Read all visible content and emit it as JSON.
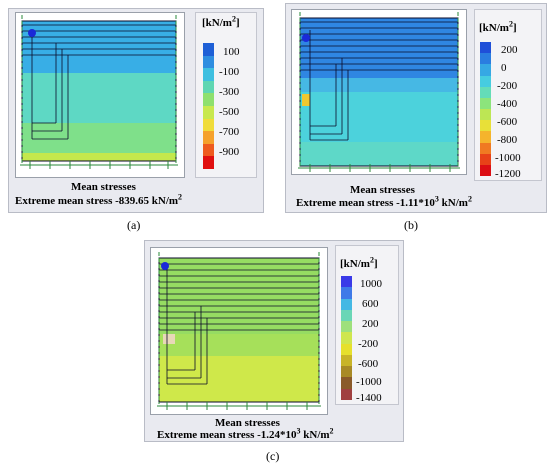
{
  "panels": [
    {
      "id": "a",
      "legend_unit": "[kN/m",
      "legend_unit_exp": "2",
      "legend_unit_end": "]",
      "legend_labels": [
        "100",
        "-100",
        "-300",
        "-500",
        "-700",
        "-900"
      ],
      "legend_colors": [
        "#1e5fd6",
        "#2e8de0",
        "#3ebfe0",
        "#5fd6b2",
        "#8ee06e",
        "#c8e84e",
        "#f0dc3a",
        "#f5a12c",
        "#ee5b1f",
        "#e01010"
      ],
      "caption_title": "Mean stresses",
      "caption_text": "Extreme mean stress -839.65 kN/m",
      "caption_exp": "2",
      "figure_label": "(a)"
    },
    {
      "id": "b",
      "legend_unit": "[kN/m",
      "legend_unit_exp": "2",
      "legend_unit_end": "]",
      "legend_labels": [
        "200",
        "0",
        "-200",
        "-400",
        "-600",
        "-800",
        "-1000",
        "-1200"
      ],
      "legend_colors": [
        "#1f4fd8",
        "#2a7de0",
        "#36a8e4",
        "#46cce0",
        "#64dcb8",
        "#8ce47c",
        "#bde654",
        "#e8e038",
        "#f5b42c",
        "#f07a22",
        "#e84218",
        "#dc0e14"
      ],
      "caption_title": "Mean stresses",
      "caption_text": "Extreme mean stress -1.11*10",
      "caption_exp": "3",
      "caption_unit": " kN/m",
      "caption_unit_exp": "2",
      "figure_label": "(b)"
    },
    {
      "id": "c",
      "legend_unit": "[kN/m",
      "legend_unit_exp": "2",
      "legend_unit_end": "]",
      "legend_labels": [
        "1000",
        "600",
        "200",
        "-200",
        "-600",
        "-1000",
        "-1400"
      ],
      "legend_colors": [
        "#3a3ae8",
        "#3f7ae8",
        "#44b8e4",
        "#6ad6b6",
        "#9ee07c",
        "#cfe64e",
        "#e6e02c",
        "#c8b428",
        "#a88a26",
        "#8a5a2a",
        "#a04040"
      ],
      "caption_title": "Mean stresses",
      "caption_text": "Extreme mean stress -1.24*10",
      "caption_exp": "3",
      "caption_unit": " kN/m",
      "caption_unit_exp": "2",
      "figure_label": "(c)"
    }
  ],
  "colors": {
    "panel_bg": "#e9eaf0",
    "field_a_top": "#38aee6",
    "field_a_mid": "#5ed8c4",
    "field_a_low": "#7fe08a",
    "field_a_base": "#c4e84c",
    "field_b_top": "#2f86e2",
    "field_b_mid": "#4cd2dc",
    "field_b_low": "#5ed8c8",
    "field_c_top": "#96dc62",
    "field_c_low": "#cfe84a",
    "mesh_line": "#0a0a28",
    "support": "#2a8a3a"
  }
}
